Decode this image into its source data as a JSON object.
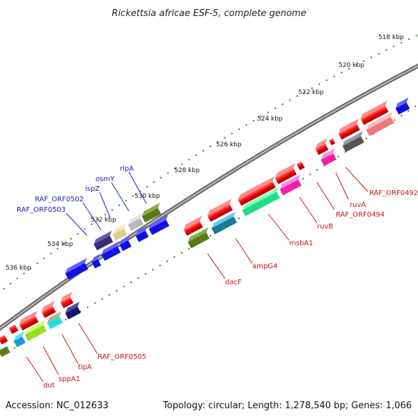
{
  "title": "Rickettsia africae ESF-5, complete genome",
  "footer": {
    "accession": "Accession: NC_012633",
    "summary": "Topology: circular; Length: 1,278,540 bp; Genes: 1,066"
  },
  "ruler": {
    "ticks": [
      "518 kbp",
      "520 kbp",
      "522 kbp",
      "524 kbp",
      "526 kbp",
      "528 kbp",
      "530 kbp",
      "532 kbp",
      "534 kbp",
      "536 kbp"
    ]
  },
  "colors": {
    "backbone": "#8a8a8a",
    "tick_marks": "#2f7f2f",
    "forward_label": "#1a1acc",
    "reverse_label": "#cc1111",
    "blue_gene": "#1010e0",
    "red_gene": "#ee0000"
  },
  "gene_labels": {
    "forward": [
      "RAF_ORF0503",
      "RAF_ORF0502",
      "ispZ",
      "osmY",
      "rlpA"
    ],
    "reverse": [
      "RAF_ORF0492",
      "ruvA",
      "RAF_ORF0494",
      "ruvB",
      "msbA1",
      "ampG4",
      "dacF",
      "RAF_ORF0505",
      "tlpA",
      "sppA1",
      "dut"
    ]
  }
}
